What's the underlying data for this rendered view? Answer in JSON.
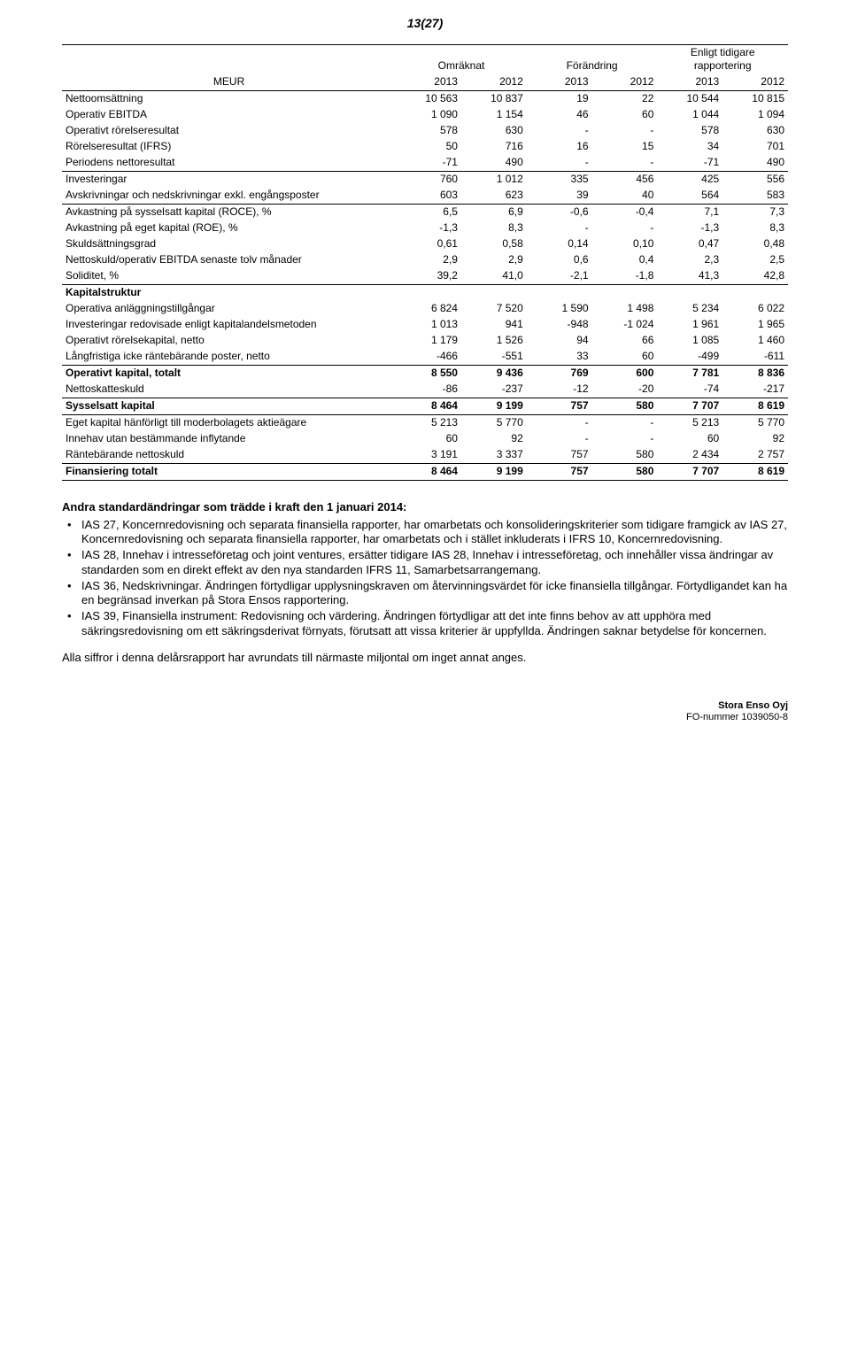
{
  "page_number": "13(27)",
  "col_groups": {
    "g1": "Omräknat",
    "g2": "Förändring",
    "g3": "Enligt tidigare rapportering"
  },
  "col_years": {
    "meur": "MEUR",
    "y2013": "2013",
    "y2012": "2012"
  },
  "rows": {
    "netto": {
      "lbl": "Nettoomsättning",
      "v": [
        "10 563",
        "10 837",
        "19",
        "22",
        "10 544",
        "10 815"
      ]
    },
    "opEbit": {
      "lbl": "Operativ EBITDA",
      "v": [
        "1 090",
        "1 154",
        "46",
        "60",
        "1 044",
        "1 094"
      ]
    },
    "opRes": {
      "lbl": "Operativt rörelseresultat",
      "v": [
        "578",
        "630",
        "-",
        "-",
        "578",
        "630"
      ]
    },
    "ifrs": {
      "lbl": "Rörelseresultat (IFRS)",
      "v": [
        "50",
        "716",
        "16",
        "15",
        "34",
        "701"
      ]
    },
    "perNet": {
      "lbl": "Periodens nettoresultat",
      "v": [
        "-71",
        "490",
        "-",
        "-",
        "-71",
        "490"
      ]
    },
    "invest": {
      "lbl": "Investeringar",
      "v": [
        "760",
        "1 012",
        "335",
        "456",
        "425",
        "556"
      ]
    },
    "avNed": {
      "lbl": "Avskrivningar och nedskrivningar exkl. engångsposter",
      "v": [
        "603",
        "623",
        "39",
        "40",
        "564",
        "583"
      ]
    },
    "roce": {
      "lbl": "Avkastning på sysselsatt kapital (ROCE), %",
      "v": [
        "6,5",
        "6,9",
        "-0,6",
        "-0,4",
        "7,1",
        "7,3"
      ]
    },
    "roe": {
      "lbl": "Avkastning på eget kapital (ROE), %",
      "v": [
        "-1,3",
        "8,3",
        "-",
        "-",
        "-1,3",
        "8,3"
      ]
    },
    "skuld": {
      "lbl": "Skuldsättningsgrad",
      "v": [
        "0,61",
        "0,58",
        "0,14",
        "0,10",
        "0,47",
        "0,48"
      ]
    },
    "netOp": {
      "lbl": "Nettoskuld/operativ EBITDA senaste tolv månader",
      "v": [
        "2,9",
        "2,9",
        "0,6",
        "0,4",
        "2,3",
        "2,5"
      ]
    },
    "solid": {
      "lbl": "Soliditet, %",
      "v": [
        "39,2",
        "41,0",
        "-2,1",
        "-1,8",
        "41,3",
        "42,8"
      ]
    },
    "kapHead": {
      "lbl": "Kapitalstruktur"
    },
    "opAnl": {
      "lbl": "Operativa anläggningstillgångar",
      "v": [
        "6 824",
        "7 520",
        "1 590",
        "1 498",
        "5 234",
        "6 022"
      ]
    },
    "invKap": {
      "lbl": "Investeringar redovisade enligt kapitalandelsmetoden",
      "v": [
        "1 013",
        "941",
        "-948",
        "-1 024",
        "1 961",
        "1 965"
      ]
    },
    "opRk": {
      "lbl": "Operativt rörelsekapital, netto",
      "v": [
        "1 179",
        "1 526",
        "94",
        "66",
        "1 085",
        "1 460"
      ]
    },
    "lang": {
      "lbl": "Långfristiga icke räntebärande poster, netto",
      "v": [
        "-466",
        "-551",
        "33",
        "60",
        "-499",
        "-611"
      ]
    },
    "opKap": {
      "lbl": "Operativt kapital, totalt",
      "v": [
        "8 550",
        "9 436",
        "769",
        "600",
        "7 781",
        "8 836"
      ]
    },
    "netSk": {
      "lbl": "Nettoskatteskuld",
      "v": [
        "-86",
        "-237",
        "-12",
        "-20",
        "-74",
        "-217"
      ]
    },
    "sysKap": {
      "lbl": "Sysselsatt kapital",
      "v": [
        "8 464",
        "9 199",
        "757",
        "580",
        "7 707",
        "8 619"
      ]
    },
    "eget": {
      "lbl": "Eget kapital hänförligt till moderbolagets aktieägare",
      "v": [
        "5 213",
        "5 770",
        "-",
        "-",
        "5 213",
        "5 770"
      ]
    },
    "innehav": {
      "lbl": "Innehav utan bestämmande inflytande",
      "v": [
        "60",
        "92",
        "-",
        "-",
        "60",
        "92"
      ]
    },
    "rante": {
      "lbl": "Räntebärande nettoskuld",
      "v": [
        "3 191",
        "3 337",
        "757",
        "580",
        "2 434",
        "2 757"
      ]
    },
    "finans": {
      "lbl": "Finansiering totalt",
      "v": [
        "8 464",
        "9 199",
        "757",
        "580",
        "7 707",
        "8 619"
      ]
    }
  },
  "body": {
    "heading": "Andra standardändringar som trädde i kraft den 1 januari 2014:",
    "bullets": [
      "IAS 27, Koncernredovisning och separata finansiella rapporter, har omarbetats och konsolideringskriterier som tidigare framgick av IAS 27, Koncernredovisning och separata finansiella rapporter, har omarbetats och i stället inkluderats i IFRS 10, Koncernredovisning.",
      "IAS 28, Innehav i intresseföretag och joint ventures, ersätter tidigare IAS 28, Innehav i intresseföretag, och innehåller vissa ändringar av standarden som en direkt effekt av den nya standarden IFRS 11, Samarbetsarrangemang.",
      "IAS 36, Nedskrivningar. Ändringen förtydligar upplysningskraven om återvinningsvärdet för icke finansiella tillgångar. Förtydligandet kan ha en begränsad inverkan på Stora Ensos rapportering.",
      "IAS 39, Finansiella instrument: Redovisning och värdering. Ändringen förtydligar att det inte finns behov av att upphöra med säkringsredovisning om ett säkringsderivat förnyats, förutsatt att vissa kriterier är uppfyllda. Ändringen saknar betydelse för koncernen."
    ],
    "closing": "Alla siffror i denna delårsrapport har avrundats till närmaste miljontal om inget annat anges."
  },
  "footer": {
    "company": "Stora Enso Oyj",
    "reg": "FO-nummer 1039050-8"
  }
}
